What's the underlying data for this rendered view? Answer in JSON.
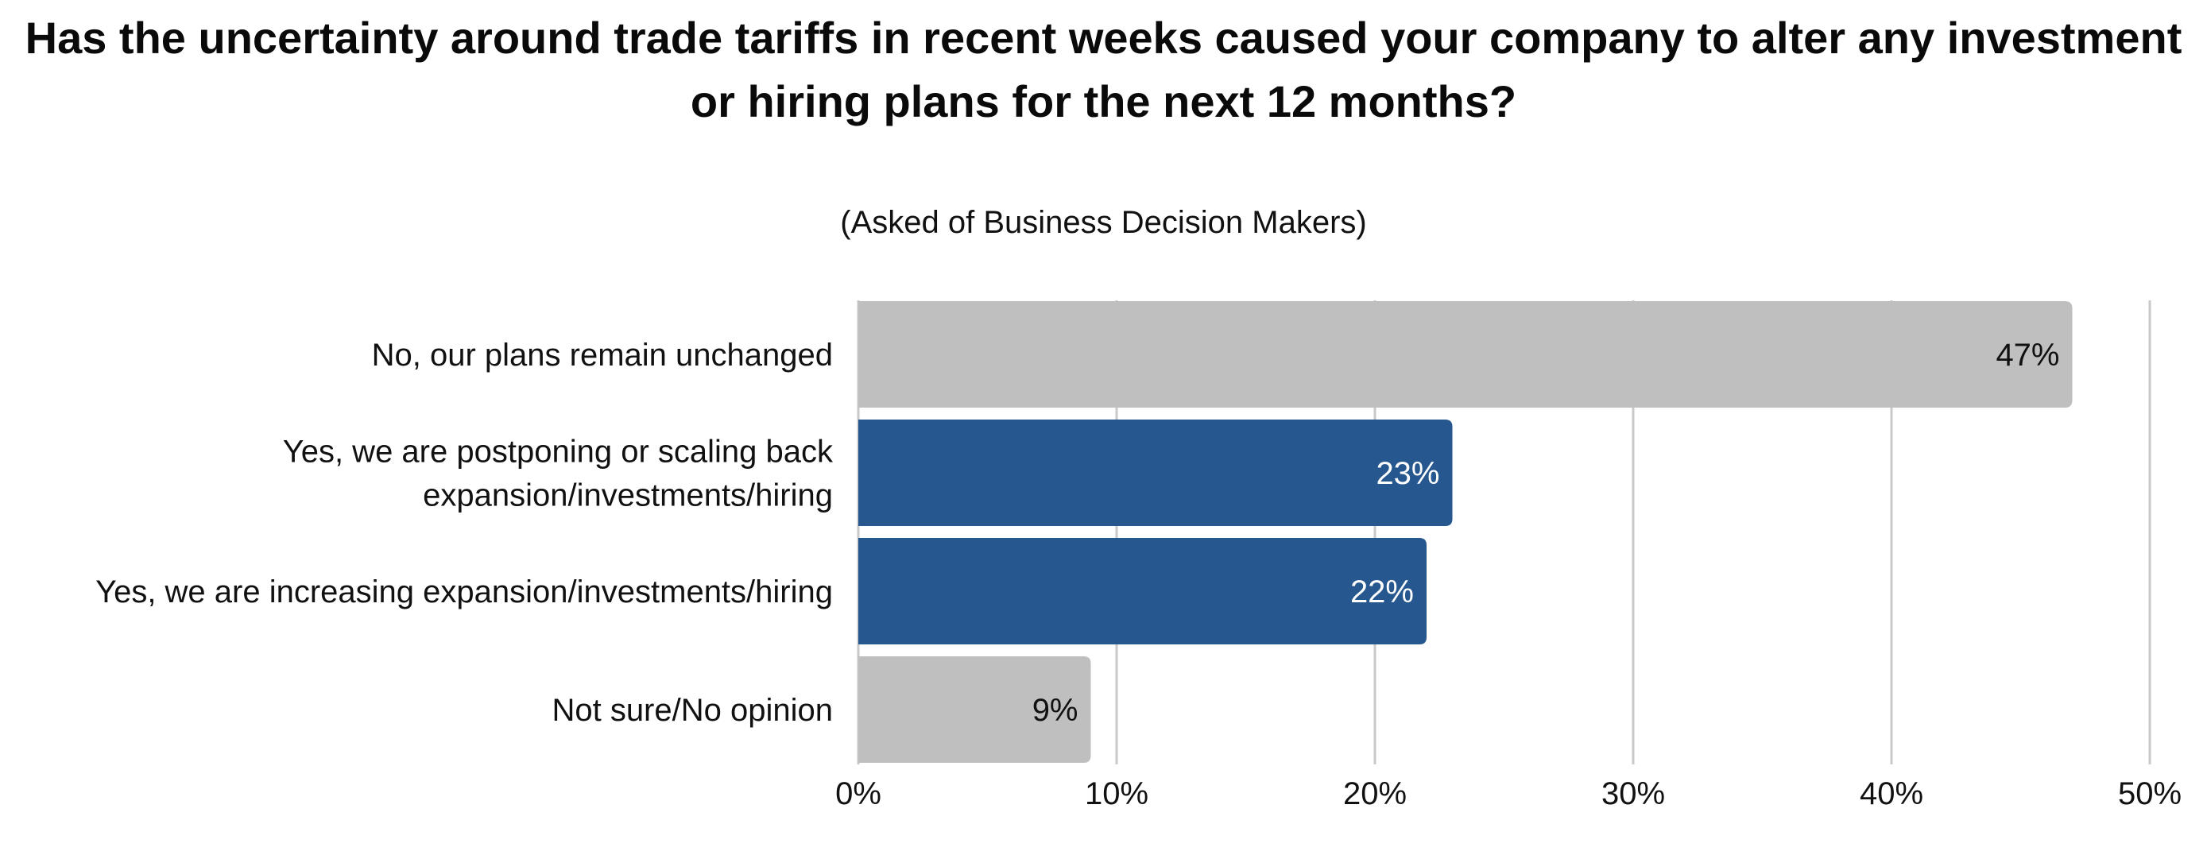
{
  "chart_data": {
    "type": "bar",
    "orientation": "horizontal",
    "title": "Has the uncertainty around trade tariffs in recent weeks caused your company to alter any investment or hiring plans for the next 12 months?",
    "subtitle": "(Asked of Business Decision Makers)",
    "categories": [
      "No, our plans remain unchanged",
      "Yes, we are postponing or scaling back expansion/investments/hiring",
      "Yes, we are increasing expansion/investments/hiring",
      "Not sure/No opinion"
    ],
    "category_label_lines": [
      [
        "No, our plans remain unchanged"
      ],
      [
        "Yes, we are postponing or scaling back",
        "expansion/investments/hiring"
      ],
      [
        "Yes, we are increasing expansion/investments/hiring"
      ],
      [
        "Not sure/No opinion"
      ]
    ],
    "values": [
      47,
      23,
      22,
      9
    ],
    "data_labels": [
      "47%",
      "23%",
      "22%",
      "9%"
    ],
    "bar_colors": [
      "#bfbfbf",
      "#26588f",
      "#26588f",
      "#bfbfbf"
    ],
    "data_label_colors": [
      "#111111",
      "#ffffff",
      "#ffffff",
      "#111111"
    ],
    "xlim": [
      0,
      50
    ],
    "xticks": [
      0,
      10,
      20,
      30,
      40,
      50
    ],
    "xtick_labels": [
      "0%",
      "10%",
      "20%",
      "30%",
      "40%",
      "50%"
    ],
    "xlabel": "",
    "ylabel": "",
    "grid": true,
    "gridline_color": "#c9c9c9"
  }
}
